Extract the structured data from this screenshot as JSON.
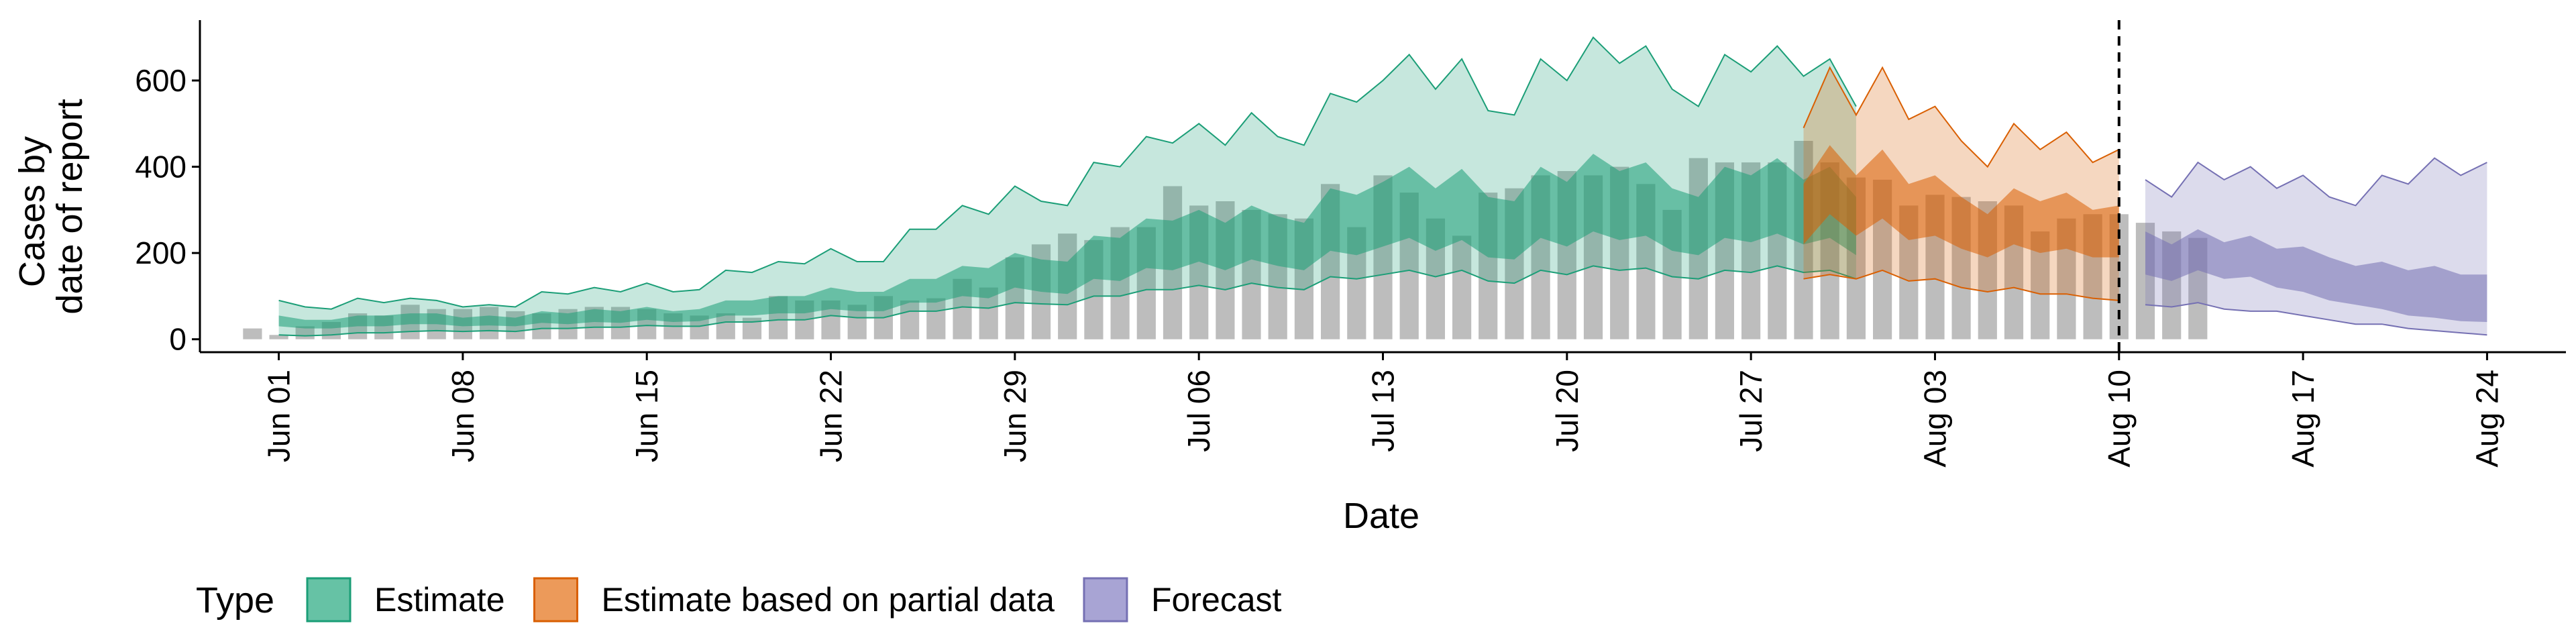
{
  "chart_data": {
    "type": "area",
    "xlabel": "Date",
    "ylabel": [
      "Cases by",
      "date of report"
    ],
    "xlim": [
      "2020-05-29",
      "2020-08-27"
    ],
    "ylim": [
      -30,
      740
    ],
    "y_ticks": [
      0,
      200,
      400,
      600
    ],
    "x_ticks": [
      {
        "date": "2020-06-01",
        "label": "Jun 01"
      },
      {
        "date": "2020-06-08",
        "label": "Jun 08"
      },
      {
        "date": "2020-06-15",
        "label": "Jun 15"
      },
      {
        "date": "2020-06-22",
        "label": "Jun 22"
      },
      {
        "date": "2020-06-29",
        "label": "Jun 29"
      },
      {
        "date": "2020-07-06",
        "label": "Jul 06"
      },
      {
        "date": "2020-07-13",
        "label": "Jul 13"
      },
      {
        "date": "2020-07-20",
        "label": "Jul 20"
      },
      {
        "date": "2020-07-27",
        "label": "Jul 27"
      },
      {
        "date": "2020-08-03",
        "label": "Aug 03"
      },
      {
        "date": "2020-08-10",
        "label": "Aug 10"
      },
      {
        "date": "2020-08-17",
        "label": "Aug 17"
      },
      {
        "date": "2020-08-24",
        "label": "Aug 24"
      }
    ],
    "vline_date": "2020-08-10",
    "grid": false,
    "legend": {
      "position": "bottom",
      "title": "Type",
      "entries": [
        {
          "label": "Estimate",
          "fill": "#66c2a5",
          "stroke": "#1b9e77"
        },
        {
          "label": "Estimate based on partial data",
          "fill": "#ec9a5a",
          "stroke": "#d95f02"
        },
        {
          "label": "Forecast",
          "fill": "#a8a4d4",
          "stroke": "#7570b3"
        }
      ]
    },
    "colors": {
      "bars": "#bdbdbd",
      "estimate": "#1b9e77",
      "partial": "#d95f02",
      "forecast": "#7570b3",
      "vline": "#000000"
    },
    "bars": {
      "start_date": "2020-05-31",
      "values": [
        25,
        10,
        30,
        40,
        60,
        55,
        80,
        70,
        70,
        75,
        65,
        60,
        70,
        75,
        75,
        70,
        60,
        55,
        60,
        50,
        100,
        90,
        90,
        80,
        100,
        90,
        95,
        140,
        120,
        190,
        220,
        245,
        230,
        260,
        260,
        355,
        310,
        320,
        300,
        290,
        280,
        360,
        260,
        380,
        340,
        280,
        240,
        340,
        350,
        380,
        390,
        380,
        400,
        360,
        300,
        420,
        410,
        410,
        410,
        460,
        410,
        375,
        370,
        310,
        335,
        330,
        320,
        310,
        250,
        280,
        290,
        290,
        270,
        250,
        235
      ]
    },
    "series": [
      {
        "name": "Estimate",
        "start_date": "2020-06-01",
        "outer_upper": [
          90,
          75,
          70,
          95,
          85,
          95,
          90,
          75,
          80,
          75,
          110,
          105,
          120,
          110,
          130,
          110,
          115,
          160,
          155,
          180,
          175,
          210,
          180,
          180,
          255,
          255,
          310,
          290,
          355,
          320,
          310,
          410,
          400,
          470,
          455,
          500,
          450,
          525,
          470,
          450,
          570,
          550,
          600,
          660,
          580,
          650,
          530,
          520,
          650,
          600,
          700,
          640,
          680,
          580,
          540,
          660,
          620,
          680,
          610,
          650,
          540
        ],
        "inner_upper": [
          55,
          45,
          45,
          55,
          55,
          60,
          60,
          50,
          55,
          50,
          65,
          60,
          70,
          65,
          75,
          65,
          70,
          90,
          90,
          100,
          100,
          120,
          110,
          110,
          140,
          140,
          170,
          165,
          200,
          185,
          180,
          240,
          235,
          280,
          275,
          300,
          270,
          310,
          285,
          270,
          350,
          335,
          365,
          400,
          350,
          395,
          330,
          320,
          400,
          365,
          430,
          390,
          410,
          350,
          330,
          400,
          380,
          420,
          370,
          400,
          330
        ],
        "inner_lower": [
          30,
          25,
          25,
          30,
          30,
          35,
          35,
          30,
          32,
          30,
          38,
          35,
          40,
          38,
          45,
          40,
          42,
          55,
          55,
          60,
          60,
          70,
          65,
          65,
          85,
          85,
          100,
          95,
          120,
          110,
          105,
          140,
          135,
          165,
          160,
          180,
          160,
          185,
          170,
          160,
          205,
          195,
          215,
          235,
          205,
          230,
          190,
          185,
          235,
          215,
          250,
          230,
          240,
          205,
          195,
          235,
          225,
          245,
          220,
          235,
          195
        ],
        "outer_lower": [
          10,
          8,
          10,
          15,
          15,
          18,
          20,
          18,
          20,
          18,
          25,
          25,
          28,
          28,
          32,
          30,
          30,
          40,
          40,
          45,
          45,
          55,
          50,
          50,
          65,
          65,
          75,
          72,
          85,
          82,
          80,
          100,
          100,
          115,
          115,
          125,
          115,
          130,
          120,
          115,
          145,
          140,
          150,
          160,
          145,
          160,
          135,
          130,
          160,
          150,
          170,
          160,
          165,
          145,
          140,
          160,
          155,
          170,
          155,
          160,
          140
        ]
      },
      {
        "name": "Estimate based on partial data",
        "start_date": "2020-07-29",
        "outer_upper": [
          490,
          630,
          520,
          630,
          510,
          540,
          460,
          400,
          500,
          440,
          480,
          410,
          440
        ],
        "inner_upper": [
          360,
          450,
          380,
          440,
          360,
          380,
          330,
          290,
          350,
          320,
          340,
          300,
          310
        ],
        "inner_lower": [
          220,
          290,
          240,
          280,
          230,
          240,
          210,
          190,
          220,
          200,
          210,
          190,
          190
        ],
        "outer_lower": [
          140,
          150,
          140,
          160,
          135,
          140,
          120,
          110,
          120,
          105,
          105,
          95,
          90
        ]
      },
      {
        "name": "Forecast",
        "start_date": "2020-08-11",
        "outer_upper": [
          370,
          330,
          410,
          370,
          400,
          350,
          380,
          330,
          310,
          380,
          360,
          420,
          380,
          410
        ],
        "inner_upper": [
          250,
          220,
          255,
          225,
          240,
          210,
          215,
          190,
          170,
          180,
          160,
          170,
          150,
          150
        ],
        "inner_lower": [
          150,
          135,
          160,
          140,
          145,
          120,
          110,
          90,
          80,
          70,
          55,
          50,
          42,
          40
        ],
        "outer_lower": [
          80,
          75,
          85,
          70,
          65,
          65,
          55,
          45,
          35,
          35,
          25,
          20,
          15,
          10
        ]
      }
    ]
  }
}
